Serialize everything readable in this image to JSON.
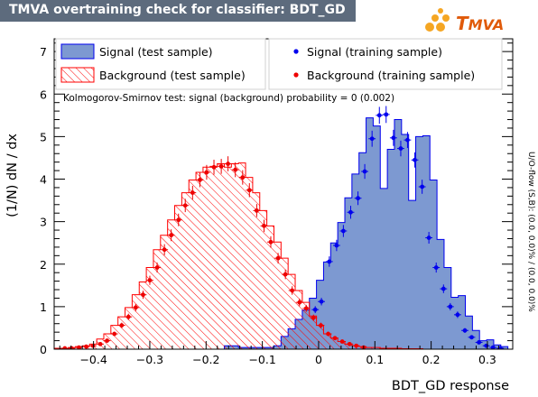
{
  "title": "TMVA overtraining check for classifier: BDT_GD",
  "logo": {
    "prefix": "T",
    "rest": "MVA"
  },
  "overflow_note": "U/O-flow (S,B): (0.0, 0.0)% / (0.0, 0.0)%",
  "ks_text": "Kolmogorov-Smirnov test: signal (background) probability =     0 (0.002)",
  "legend": {
    "signal_test": "Signal (test sample)",
    "background_test": "Background (test sample)",
    "signal_train": "Signal (training sample)",
    "background_train": "Background (training sample)"
  },
  "colors": {
    "signal_fill": "#7d99d1",
    "signal_line": "#0000ee",
    "background_hatch": "#ff0000",
    "title_bg": "#5d6b7d"
  },
  "chart_data": {
    "type": "histogram",
    "xlabel": "BDT_GD response",
    "ylabel": "(1/N) dN / dx",
    "xlim": [
      -0.47,
      0.345
    ],
    "ylim": [
      0,
      7.3
    ],
    "xticks": [
      -0.4,
      -0.3,
      -0.2,
      -0.1,
      0,
      0.1,
      0.2,
      0.3
    ],
    "xtick_labels": [
      "−0.4",
      "−0.3",
      "−0.2",
      "−0.1",
      "0",
      "0.1",
      "0.2",
      "0.3"
    ],
    "yticks": [
      0,
      1,
      2,
      3,
      4,
      5,
      6,
      7
    ],
    "bin_edges": [
      -0.47,
      -0.4574,
      -0.4448,
      -0.4322,
      -0.4196,
      -0.407,
      -0.3944,
      -0.3818,
      -0.3692,
      -0.3566,
      -0.344,
      -0.3314,
      -0.3188,
      -0.3062,
      -0.2936,
      -0.281,
      -0.2684,
      -0.2558,
      -0.2432,
      -0.2306,
      -0.218,
      -0.2054,
      -0.1928,
      -0.1802,
      -0.1676,
      -0.155,
      -0.1424,
      -0.1298,
      -0.1172,
      -0.1046,
      -0.092,
      -0.0794,
      -0.0668,
      -0.0542,
      -0.0416,
      -0.029,
      -0.0164,
      -0.0038,
      0.0088,
      0.0214,
      0.034,
      0.0466,
      0.0592,
      0.0718,
      0.0844,
      0.097,
      0.1096,
      0.1222,
      0.1348,
      0.1474,
      0.16,
      0.1726,
      0.1852,
      0.1978,
      0.2104,
      0.223,
      0.2356,
      0.2482,
      0.2608,
      0.2734,
      0.286,
      0.2986,
      0.3112,
      0.3238,
      0.3364
    ],
    "series": [
      {
        "name": "Signal (test sample)",
        "kind": "filled-histogram",
        "values": [
          0,
          0,
          0,
          0,
          0,
          0,
          0,
          0,
          0,
          0,
          0,
          0,
          0,
          0,
          0,
          0,
          0,
          0,
          0,
          0,
          0,
          0,
          0,
          0,
          0.08,
          0.08,
          0.04,
          0.04,
          0.04,
          0.04,
          0.04,
          0.08,
          0.3,
          0.48,
          0.7,
          0.92,
          1.2,
          1.62,
          2.05,
          2.5,
          2.98,
          3.56,
          4.12,
          4.62,
          5.44,
          5.25,
          3.78,
          4.7,
          5.4,
          5.05,
          3.5,
          5.0,
          5.02,
          3.98,
          2.58,
          1.92,
          1.22,
          1.26,
          0.78,
          0.44,
          0.2,
          0.22,
          0.1,
          0.06
        ]
      },
      {
        "name": "Background (test sample)",
        "kind": "hatched-histogram",
        "values": [
          0.02,
          0.02,
          0.04,
          0.06,
          0.08,
          0.12,
          0.24,
          0.36,
          0.56,
          0.76,
          0.98,
          1.28,
          1.58,
          1.92,
          2.34,
          2.68,
          3.04,
          3.38,
          3.68,
          3.98,
          4.16,
          4.28,
          4.3,
          4.36,
          4.28,
          4.36,
          4.38,
          4.04,
          3.68,
          3.26,
          2.9,
          2.52,
          2.14,
          1.76,
          1.38,
          1.1,
          0.78,
          0.56,
          0.36,
          0.26,
          0.18,
          0.12,
          0.08,
          0.06,
          0.04,
          0.04,
          0.02,
          0.02,
          0.02,
          0.01,
          0.01,
          0.01,
          0,
          0,
          0,
          0,
          0,
          0,
          0,
          0,
          0,
          0,
          0,
          0
        ]
      },
      {
        "name": "Signal (training sample)",
        "kind": "points",
        "x": [
          -0.006,
          0.005,
          0.019,
          0.032,
          0.044,
          0.057,
          0.07,
          0.082,
          0.095,
          0.108,
          0.12,
          0.133,
          0.146,
          0.158,
          0.171,
          0.184,
          0.196,
          0.209,
          0.222,
          0.234,
          0.247,
          0.26,
          0.272,
          0.285,
          0.298,
          0.31,
          0.323
        ],
        "y": [
          0.93,
          1.12,
          2.06,
          2.44,
          2.78,
          3.22,
          3.55,
          4.18,
          4.95,
          5.5,
          5.52,
          4.97,
          4.72,
          4.92,
          4.45,
          3.82,
          2.62,
          1.92,
          1.42,
          1.0,
          0.81,
          0.44,
          0.28,
          0.16,
          0.08,
          0.04,
          0.02
        ]
      },
      {
        "name": "Background (training sample)",
        "kind": "points",
        "x": [
          -0.451,
          -0.439,
          -0.426,
          -0.413,
          -0.401,
          -0.388,
          -0.376,
          -0.363,
          -0.35,
          -0.338,
          -0.325,
          -0.312,
          -0.3,
          -0.287,
          -0.274,
          -0.262,
          -0.249,
          -0.237,
          -0.224,
          -0.211,
          -0.199,
          -0.186,
          -0.173,
          -0.161,
          -0.148,
          -0.135,
          -0.123,
          -0.11,
          -0.097,
          -0.085,
          -0.072,
          -0.059,
          -0.047,
          -0.034,
          -0.022,
          -0.009,
          0.004,
          0.017,
          0.029,
          0.042,
          0.055,
          0.067,
          0.08
        ],
        "y": [
          0.02,
          0.02,
          0.04,
          0.06,
          0.08,
          0.12,
          0.2,
          0.36,
          0.56,
          0.76,
          0.98,
          1.28,
          1.62,
          1.92,
          2.34,
          2.68,
          3.04,
          3.38,
          3.68,
          3.98,
          4.16,
          4.28,
          4.3,
          4.36,
          4.22,
          4.04,
          3.74,
          3.26,
          2.9,
          2.52,
          2.14,
          1.76,
          1.38,
          1.1,
          0.96,
          0.74,
          0.56,
          0.36,
          0.26,
          0.18,
          0.12,
          0.08,
          0.04
        ]
      }
    ],
    "legend_position": "top"
  }
}
